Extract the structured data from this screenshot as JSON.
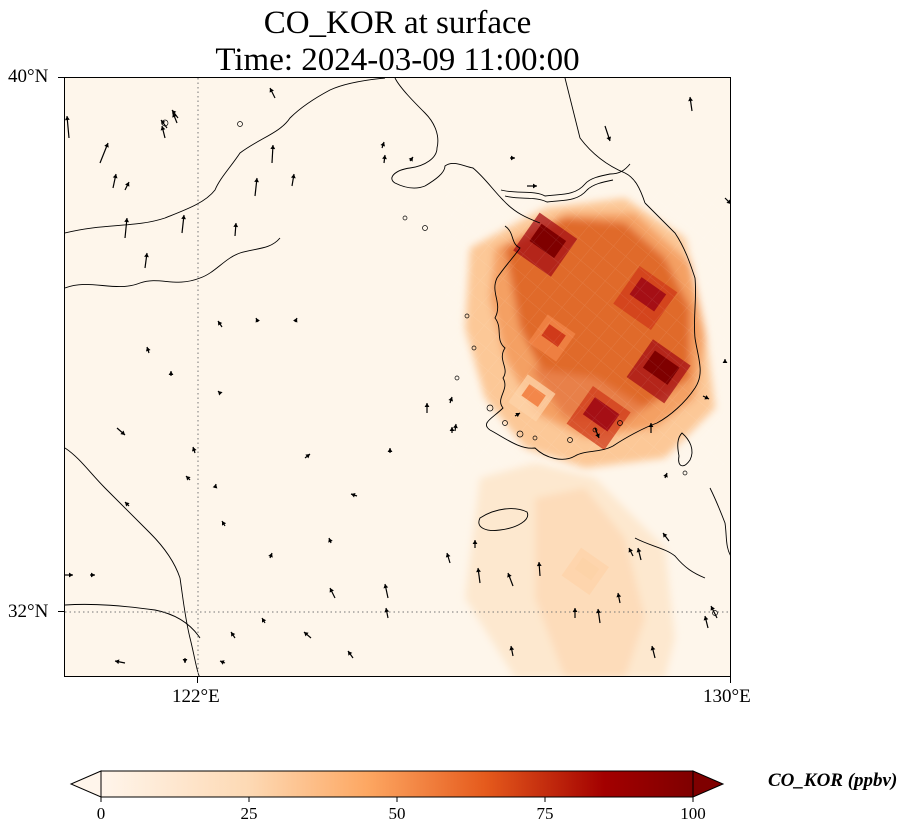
{
  "title_line1": "CO_KOR at surface",
  "title_line2": "Time: 2024-03-09 11:00:00",
  "axes": {
    "lat_labels": [
      "40°N",
      "32°N"
    ],
    "lon_labels": [
      "122°E",
      "130°E"
    ],
    "lon_range": [
      120,
      130
    ],
    "lat_range": [
      31,
      40
    ]
  },
  "colorbar": {
    "title": "CO_KOR (ppbv)",
    "ticks": [
      "0",
      "25",
      "50",
      "75",
      "100"
    ],
    "range": [
      0,
      100
    ],
    "extend": "both",
    "colors": [
      "#fff5eb",
      "#fdd9b4",
      "#fda762",
      "#e55a1c",
      "#a30000",
      "#7f0000"
    ]
  },
  "chart_data": {
    "type": "heatmap",
    "title": "CO_KOR at surface",
    "subtitle": "Time: 2024-03-09 11:00:00",
    "x_axis": "longitude",
    "y_axis": "latitude",
    "xlim": [
      120,
      130
    ],
    "ylim": [
      31,
      40
    ],
    "gridlines": [
      {
        "lon": 122
      },
      {
        "lat": 32
      }
    ],
    "units": "ppbv",
    "hotspots": [
      {
        "name": "",
        "lon": 127.2,
        "lat": 37.5,
        "value": 100
      },
      {
        "name": "",
        "lon": 128.7,
        "lat": 36.7,
        "value": 90
      },
      {
        "name": "",
        "lon": 128.9,
        "lat": 35.6,
        "value": 95
      },
      {
        "name": "",
        "lon": 127.3,
        "lat": 36.1,
        "value": 70
      },
      {
        "name": "",
        "lon": 128.0,
        "lat": 34.9,
        "value": 85
      },
      {
        "name": "",
        "lon": 127.0,
        "lat": 35.2,
        "value": 55
      },
      {
        "name": "",
        "lon": 127.8,
        "lat": 32.6,
        "value": 18
      }
    ]
  }
}
